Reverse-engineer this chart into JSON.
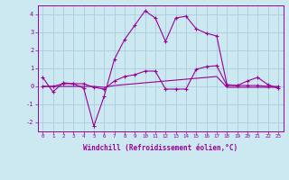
{
  "xlabel": "Windchill (Refroidissement éolien,°C)",
  "background_color": "#cce8f0",
  "grid_color": "#aaccdd",
  "line_color": "#990099",
  "x": [
    0,
    1,
    2,
    3,
    4,
    5,
    6,
    7,
    8,
    9,
    10,
    11,
    12,
    13,
    14,
    15,
    16,
    17,
    18,
    19,
    20,
    21,
    22,
    23
  ],
  "line1": [
    0.5,
    -0.3,
    0.2,
    0.15,
    -0.1,
    -2.2,
    -0.55,
    1.5,
    2.6,
    3.4,
    4.2,
    3.8,
    2.5,
    3.8,
    3.9,
    3.2,
    2.95,
    2.8,
    0.1,
    0.05,
    0.3,
    0.5,
    0.1,
    -0.1
  ],
  "line2": [
    0.0,
    0.0,
    0.15,
    0.15,
    0.15,
    -0.05,
    -0.15,
    0.3,
    0.55,
    0.65,
    0.85,
    0.85,
    -0.15,
    -0.15,
    -0.15,
    0.95,
    1.1,
    1.15,
    0.05,
    0.05,
    0.05,
    0.05,
    0.0,
    0.0
  ],
  "line3": [
    0.0,
    0.0,
    0.0,
    0.0,
    0.0,
    0.0,
    -0.05,
    0.05,
    0.1,
    0.15,
    0.2,
    0.25,
    0.3,
    0.35,
    0.4,
    0.45,
    0.5,
    0.55,
    -0.05,
    -0.05,
    -0.05,
    -0.05,
    -0.05,
    -0.05
  ],
  "ylim": [
    -2.5,
    4.5
  ],
  "yticks": [
    -2,
    -1,
    0,
    1,
    2,
    3,
    4
  ],
  "xticks": [
    0,
    1,
    2,
    3,
    4,
    5,
    6,
    7,
    8,
    9,
    10,
    11,
    12,
    13,
    14,
    15,
    16,
    17,
    18,
    19,
    20,
    21,
    22,
    23
  ]
}
